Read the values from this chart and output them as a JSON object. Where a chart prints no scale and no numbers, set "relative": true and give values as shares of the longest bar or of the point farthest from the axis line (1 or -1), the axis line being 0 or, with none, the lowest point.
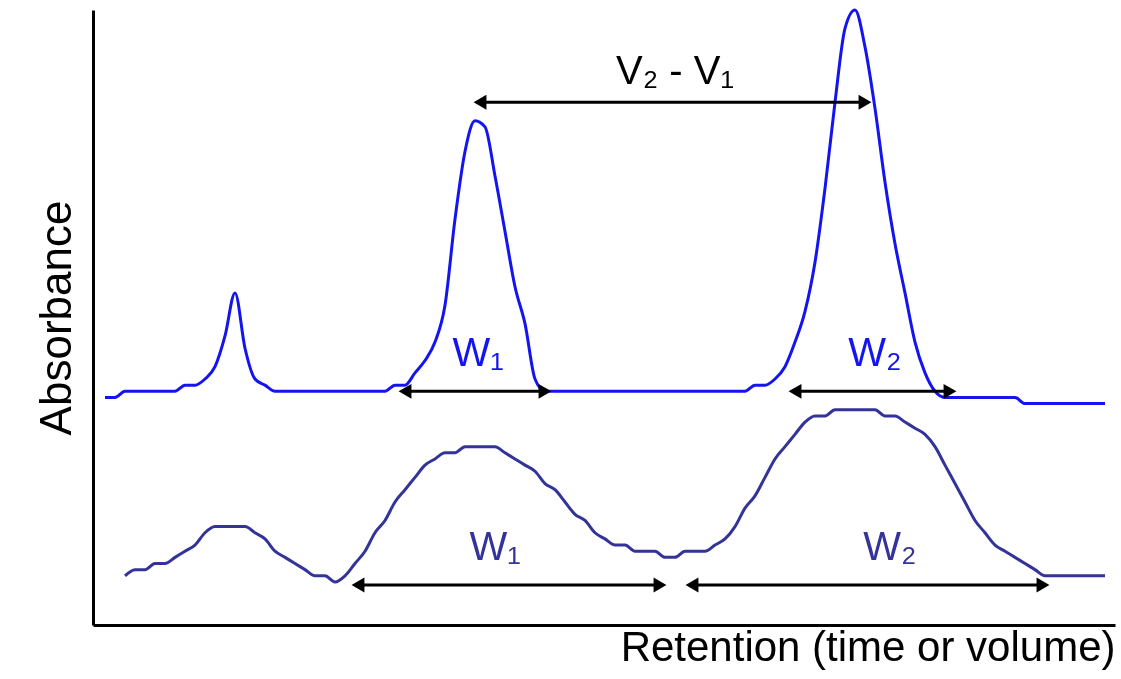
{
  "chart_data": {
    "type": "line",
    "relative": true,
    "xlabel": "Retention (time or volume)",
    "ylabel": "Absorbance",
    "categories": [
      null,
      null,
      null,
      null,
      null,
      null,
      null,
      null,
      null,
      null,
      null,
      null,
      null,
      null,
      null,
      null,
      null,
      null,
      null,
      null,
      null,
      null,
      null,
      null,
      null,
      null,
      null,
      null,
      null,
      null,
      null,
      null,
      null,
      null,
      null,
      null,
      null,
      null,
      null,
      null,
      null,
      null,
      null,
      null,
      null,
      null,
      null,
      null,
      null,
      null,
      null,
      null,
      null,
      null,
      null,
      null,
      null,
      null,
      null,
      null,
      null,
      null,
      null,
      null,
      null,
      null,
      null,
      null,
      null,
      null,
      null,
      null,
      null,
      null,
      null,
      null,
      null,
      null,
      null,
      null,
      null,
      null,
      null,
      null,
      null,
      null,
      null,
      null,
      null,
      null,
      null,
      null,
      null,
      null,
      null,
      null,
      null,
      null,
      null,
      null,
      null
    ],
    "series": [
      {
        "color": "#1414f0",
        "values": [
          0.37,
          0.37,
          0.38,
          0.38,
          0.38,
          0.38,
          0.38,
          0.38,
          0.39,
          0.39,
          0.4,
          0.42,
          0.47,
          0.54,
          0.45,
          0.4,
          0.39,
          0.38,
          0.38,
          0.38,
          0.38,
          0.38,
          0.38,
          0.38,
          0.38,
          0.38,
          0.38,
          0.38,
          0.38,
          0.39,
          0.39,
          0.41,
          0.43,
          0.46,
          0.52,
          0.66,
          0.77,
          0.82,
          0.81,
          0.73,
          0.64,
          0.55,
          0.49,
          0.4,
          0.38,
          0.38,
          0.38,
          0.38,
          0.38,
          0.38,
          0.38,
          0.38,
          0.38,
          0.38,
          0.38,
          0.38,
          0.38,
          0.38,
          0.38,
          0.38,
          0.38,
          0.38,
          0.38,
          0.38,
          0.38,
          0.39,
          0.39,
          0.4,
          0.42,
          0.46,
          0.51,
          0.59,
          0.71,
          0.85,
          0.97,
          1,
          0.94,
          0.84,
          0.72,
          0.62,
          0.54,
          0.46,
          0.41,
          0.38,
          0.37,
          0.37,
          0.37,
          0.37,
          0.37,
          0.37,
          0.37,
          0.37,
          0.36,
          0.36,
          0.36,
          0.36,
          0.36,
          0.36,
          0.36,
          0.36,
          0.36
        ]
      },
      {
        "color": "#333399",
        "values": [
          null,
          null,
          0.08,
          0.09,
          0.09,
          0.1,
          0.1,
          0.11,
          0.12,
          0.13,
          0.15,
          0.16,
          0.16,
          0.16,
          0.16,
          0.15,
          0.14,
          0.12,
          0.11,
          0.1,
          0.09,
          0.08,
          0.08,
          0.07,
          0.08,
          0.1,
          0.12,
          0.15,
          0.17,
          0.2,
          0.22,
          0.24,
          0.26,
          0.27,
          0.28,
          0.28,
          0.29,
          0.29,
          0.29,
          0.29,
          0.28,
          0.27,
          0.26,
          0.25,
          0.23,
          0.22,
          0.2,
          0.18,
          0.17,
          0.15,
          0.14,
          0.13,
          0.13,
          0.12,
          0.12,
          0.12,
          0.11,
          0.11,
          0.12,
          0.12,
          0.12,
          0.13,
          0.14,
          0.16,
          0.19,
          0.21,
          0.24,
          0.27,
          0.29,
          0.31,
          0.33,
          0.34,
          0.34,
          0.35,
          0.35,
          0.35,
          0.35,
          0.35,
          0.34,
          0.34,
          0.33,
          0.32,
          0.31,
          0.29,
          0.26,
          0.23,
          0.2,
          0.17,
          0.15,
          0.13,
          0.12,
          0.11,
          0.1,
          0.09,
          0.08,
          0.08,
          0.08,
          0.08,
          0.08,
          0.08,
          0.08
        ]
      }
    ],
    "annotations": [
      "V₂ - V₁",
      "W₁",
      "W₂",
      "W₁",
      "W₂"
    ]
  }
}
